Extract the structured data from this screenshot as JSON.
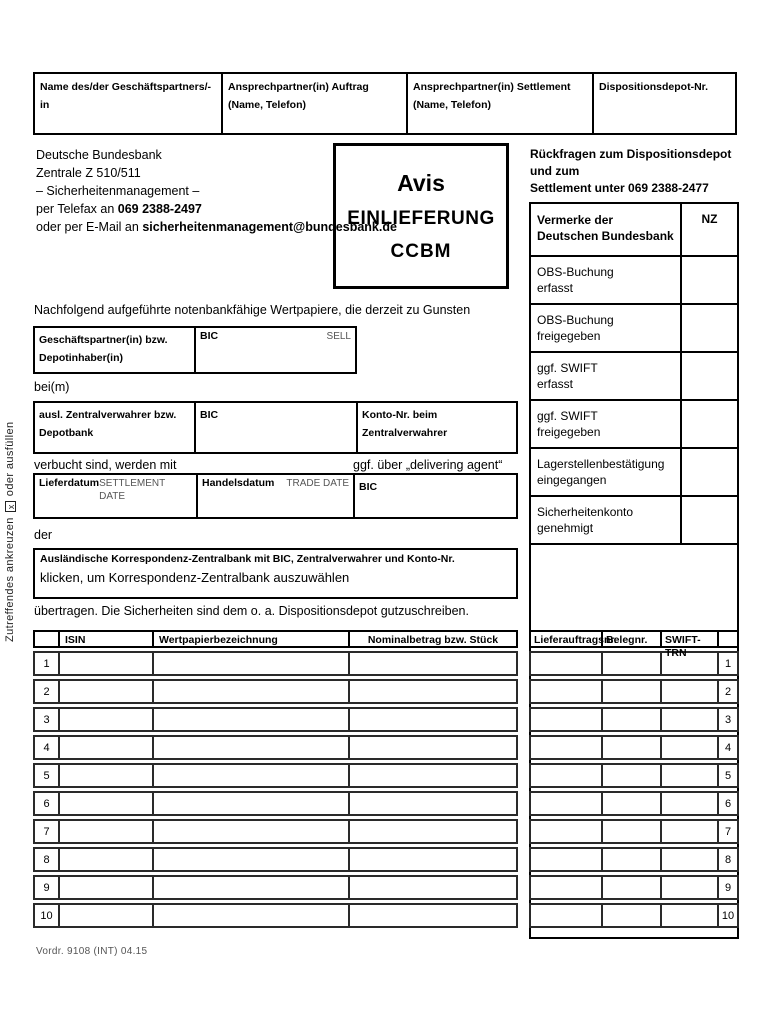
{
  "side_note": {
    "part1": "Zutreffendes ankreuzen",
    "checkbox_mark": "x",
    "part2": "oder ausfüllen"
  },
  "top_table": {
    "headers": [
      "Name des/der Geschäftspartners/-in",
      "Ansprechpartner(in) Auftrag (Name, Telefon)",
      "Ansprechpartner(in) Settlement (Name, Telefon)",
      "Dispositionsdepot-Nr."
    ]
  },
  "sender": {
    "line1": "Deutsche Bundesbank",
    "line2": "Zentrale Z 510/511",
    "line3": "– Sicherheitenmanagement –",
    "line4_prefix": "per Telefax an ",
    "line4_bold": "069 2388-2497",
    "line5_prefix": "oder per E-Mail an ",
    "line5_bold": "sicherheitenmanagement@bundesbank.de"
  },
  "avis_box": {
    "line1": "Avis",
    "line2": "EINLIEFERUNG",
    "line3": "CCBM"
  },
  "contact_note": {
    "line1": "Rückfragen zum Dispositionsdepot und zum",
    "line2": "Settlement unter 069 2388-2477"
  },
  "vermerke": {
    "title_line1": "Vermerke der",
    "title_line2": "Deutschen Bundesbank",
    "nz_label": "NZ",
    "rows": [
      {
        "line1": "OBS-Buchung",
        "line2": "erfasst"
      },
      {
        "line1": "OBS-Buchung",
        "line2": "freigegeben"
      },
      {
        "line1": "ggf. SWIFT",
        "line2": "erfasst"
      },
      {
        "line1": "ggf. SWIFT",
        "line2": "freigegeben"
      },
      {
        "line1": "Lagerstellenbestätigung",
        "line2": "eingegangen"
      },
      {
        "line1": "Sicherheitenkonto",
        "line2": "genehmigt"
      }
    ]
  },
  "body_text": {
    "intro": "Nachfolgend aufgeführte notenbankfähige Wertpapiere, die derzeit zu Gunsten",
    "bei_m": "bei(m)",
    "verbucht": "verbucht sind, werden mit",
    "delivering_agent": "ggf. über „delivering agent“",
    "der": "der",
    "uebertragen": "übertragen. Die Sicherheiten sind dem o. a. Dispositionsdepot gutzuschreiben."
  },
  "depot_table": {
    "col1": "Geschäftspartner(in) bzw. Depotinhaber(in)",
    "col2": "BIC",
    "col2_note": "SELL"
  },
  "verwahrer_table": {
    "col1": "ausl. Zentralverwahrer bzw. Depotbank",
    "col2": "BIC",
    "col3": "Konto-Nr. beim Zentralverwahrer"
  },
  "datum_table": {
    "col1": "Lieferdatum",
    "col1_note": "SETTLEMENT DATE",
    "col2": "Handelsdatum",
    "col2_note": "TRADE DATE",
    "col3": "BIC"
  },
  "korrespondenz_box": {
    "label": "Ausländische Korrespondenz-Zentralbank mit BIC, Zentralverwahrer und Konto-Nr.",
    "value": "klicken, um Korrespondenz-Zentralbank auszuwählen"
  },
  "securities_table": {
    "headers": {
      "isin": "ISIN",
      "bezeichnung": "Wertpapierbezeichnung",
      "nominal": "Nominalbetrag bzw. Stück"
    },
    "row_numbers": [
      "1",
      "2",
      "3",
      "4",
      "5",
      "6",
      "7",
      "8",
      "9",
      "10"
    ]
  },
  "liefer_table": {
    "headers": {
      "auftrag": "Lieferauftragsnr.",
      "beleg": "Belegnr.",
      "swift": "SWIFT-TRN"
    },
    "row_numbers": [
      "1",
      "2",
      "3",
      "4",
      "5",
      "6",
      "7",
      "8",
      "9",
      "10"
    ]
  },
  "footer": "Vordr. 9108 (INT)  04.15",
  "colors": {
    "ink": "#000000",
    "muted": "#555555",
    "paper": "#ffffff"
  }
}
